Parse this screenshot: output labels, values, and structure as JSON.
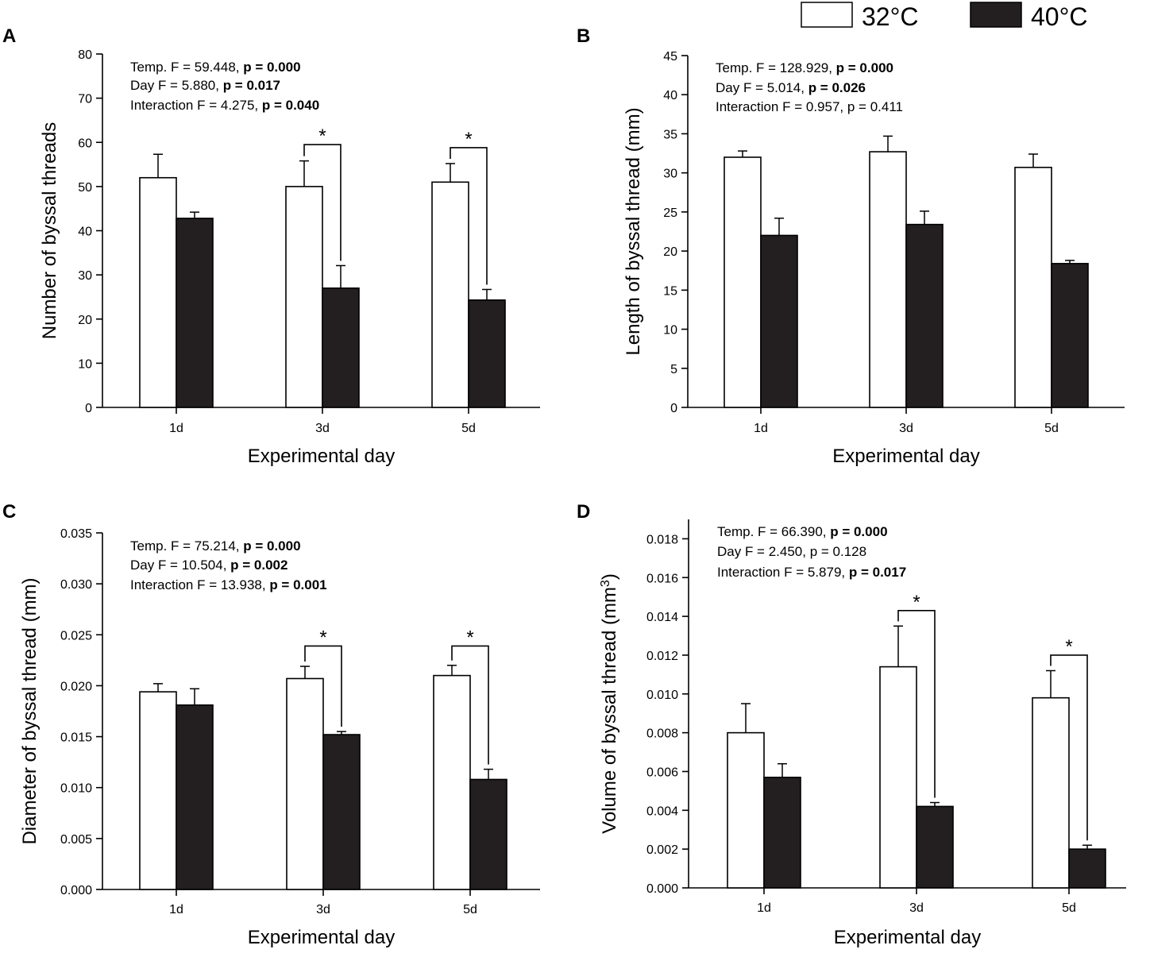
{
  "legend": {
    "items": [
      {
        "label": "32°C",
        "color": "#ffffff"
      },
      {
        "label": "40°C",
        "color": "#231f20"
      }
    ]
  },
  "chart_data": [
    {
      "panel": "A",
      "type": "bar",
      "categories": [
        "1d",
        "3d",
        "5d"
      ],
      "xlabel": "Experimental day",
      "ylabel": "Number of byssal threads",
      "ylim": [
        0,
        80
      ],
      "yticks": [
        0,
        10,
        20,
        30,
        40,
        50,
        60,
        70,
        80
      ],
      "ytick_labels": [
        "0",
        "10",
        "20",
        "30",
        "40",
        "50",
        "60",
        "70",
        "80"
      ],
      "series": [
        {
          "name": "32°C",
          "values": [
            52.0,
            50.0,
            51.0
          ],
          "errors": [
            5.3,
            5.8,
            4.2
          ]
        },
        {
          "name": "40°C",
          "values": [
            42.8,
            27.0,
            24.3
          ],
          "errors": [
            1.4,
            5.1,
            2.4
          ]
        }
      ],
      "significance": [
        {
          "category": "3d",
          "top": 59.5,
          "label": "*"
        },
        {
          "category": "5d",
          "top": 58.8,
          "label": "*"
        }
      ],
      "stats": [
        {
          "prefix": "Temp. F = 59.448, ",
          "p": "p = 0.000",
          "bold": true
        },
        {
          "prefix": "Day F = 5.880, ",
          "p": "p = 0.017",
          "bold": true
        },
        {
          "prefix": "Interaction F = 4.275, ",
          "p": "p = 0.040",
          "bold": true
        }
      ]
    },
    {
      "panel": "B",
      "type": "bar",
      "categories": [
        "1d",
        "3d",
        "5d"
      ],
      "xlabel": "Experimental day",
      "ylabel": "Length of byssal thread (mm)",
      "ylim": [
        0,
        45
      ],
      "yticks": [
        0,
        5,
        10,
        15,
        20,
        25,
        30,
        35,
        40,
        45
      ],
      "ytick_labels": [
        "0",
        "5",
        "10",
        "15",
        "20",
        "25",
        "30",
        "35",
        "40",
        "45"
      ],
      "series": [
        {
          "name": "32°C",
          "values": [
            32.0,
            32.7,
            30.7
          ],
          "errors": [
            0.8,
            2.0,
            1.7
          ]
        },
        {
          "name": "40°C",
          "values": [
            22.0,
            23.4,
            18.4
          ],
          "errors": [
            2.2,
            1.7,
            0.4
          ]
        }
      ],
      "significance": [],
      "stats": [
        {
          "prefix": "Temp. F = 128.929, ",
          "p": "p = 0.000",
          "bold": true
        },
        {
          "prefix": "Day F = 5.014, ",
          "p": "p = 0.026",
          "bold": true
        },
        {
          "prefix": "Interaction F = 0.957, ",
          "p": "p = 0.411",
          "bold": false
        }
      ]
    },
    {
      "panel": "C",
      "type": "bar",
      "categories": [
        "1d",
        "3d",
        "5d"
      ],
      "xlabel": "Experimental day",
      "ylabel": "Diameter of byssal thread (mm)",
      "ylim": [
        0,
        0.035
      ],
      "yticks": [
        0,
        0.005,
        0.01,
        0.015,
        0.02,
        0.025,
        0.03,
        0.035
      ],
      "ytick_labels": [
        "0.000",
        "0.005",
        "0.010",
        "0.015",
        "0.020",
        "0.025",
        "0.030",
        "0.035"
      ],
      "series": [
        {
          "name": "32°C",
          "values": [
            0.0194,
            0.0207,
            0.021
          ],
          "errors": [
            0.0008,
            0.0012,
            0.001
          ]
        },
        {
          "name": "40°C",
          "values": [
            0.0181,
            0.0152,
            0.0108
          ],
          "errors": [
            0.0016,
            0.0003,
            0.001
          ]
        }
      ],
      "significance": [
        {
          "category": "3d",
          "top": 0.0239,
          "label": "*"
        },
        {
          "category": "5d",
          "top": 0.0239,
          "label": "*"
        }
      ],
      "stats": [
        {
          "prefix": "Temp. F = 75.214, ",
          "p": "p = 0.000",
          "bold": true
        },
        {
          "prefix": "Day F = 10.504, ",
          "p": "p = 0.002",
          "bold": true
        },
        {
          "prefix": "Interaction F = 13.938, ",
          "p": "p = 0.001",
          "bold": true
        }
      ]
    },
    {
      "panel": "D",
      "type": "bar",
      "categories": [
        "1d",
        "3d",
        "5d"
      ],
      "xlabel": "Experimental day",
      "ylabel": "Volume of byssal thread (mm",
      "ylabel_superscript": "3",
      "ylabel_suffix": ")",
      "ylim": [
        0,
        0.019
      ],
      "yticks": [
        0,
        0.002,
        0.004,
        0.006,
        0.008,
        0.01,
        0.012,
        0.014,
        0.016,
        0.018
      ],
      "ytick_labels": [
        "0.000",
        "0.002",
        "0.004",
        "0.006",
        "0.008",
        "0.010",
        "0.012",
        "0.014",
        "0.016",
        "0.018"
      ],
      "series": [
        {
          "name": "32°C",
          "values": [
            0.008,
            0.0114,
            0.0098
          ],
          "errors": [
            0.0015,
            0.0021,
            0.0014
          ]
        },
        {
          "name": "40°C",
          "values": [
            0.0057,
            0.0042,
            0.002
          ],
          "errors": [
            0.0007,
            0.0002,
            0.0002
          ]
        }
      ],
      "significance": [
        {
          "category": "3d",
          "top": 0.0143,
          "label": "*"
        },
        {
          "category": "5d",
          "top": 0.012,
          "label": "*"
        }
      ],
      "stats": [
        {
          "prefix": "Temp. F = 66.390, ",
          "p": "p = 0.000",
          "bold": true
        },
        {
          "prefix": "Day F = 2.450, ",
          "p": "p = 0.128",
          "bold": false
        },
        {
          "prefix": "Interaction F = 5.879, ",
          "p": "p = 0.017",
          "bold": true
        }
      ]
    }
  ]
}
